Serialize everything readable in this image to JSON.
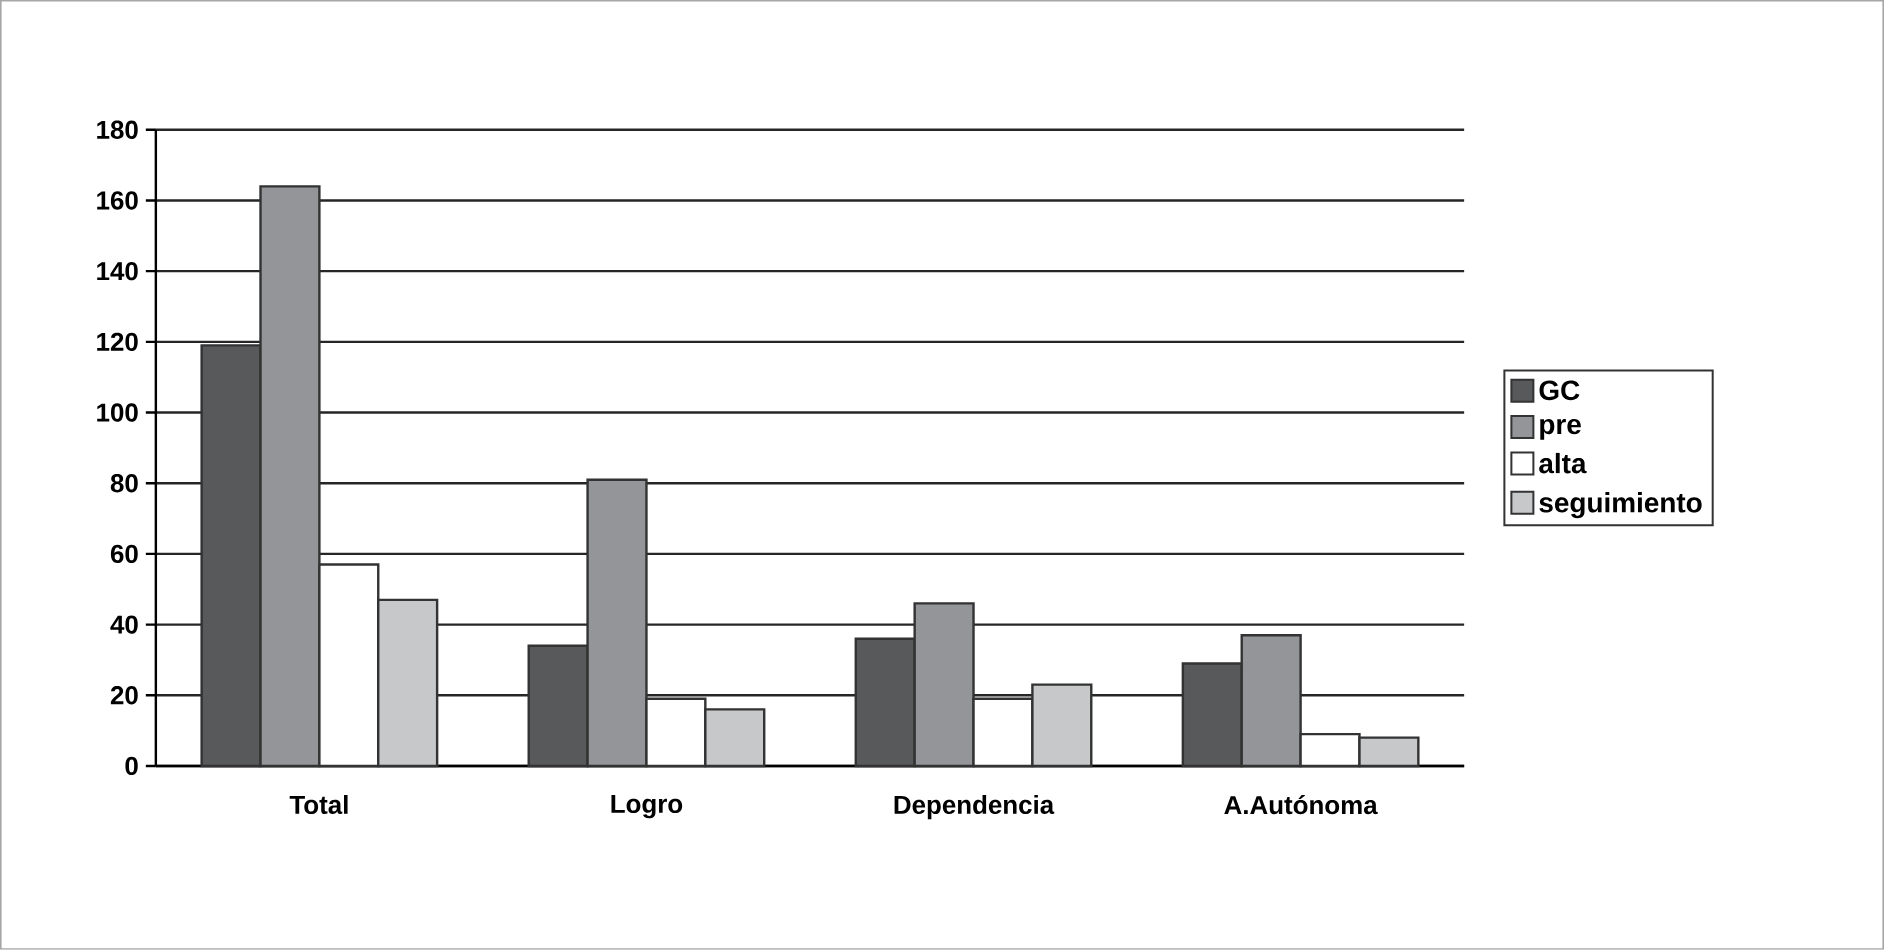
{
  "chart_data": {
    "type": "bar",
    "categories": [
      "Total",
      "Logro",
      "Dependencia",
      "A.Autónoma"
    ],
    "series": [
      {
        "name": "GC",
        "color": "#58595b",
        "values": [
          119,
          34,
          36,
          29
        ]
      },
      {
        "name": "pre",
        "color": "#939598",
        "values": [
          164,
          81,
          46,
          37
        ]
      },
      {
        "name": "alta",
        "color": "#ffffff",
        "values": [
          57,
          19,
          19,
          9
        ]
      },
      {
        "name": "seguimiento",
        "color": "#c7c8ca",
        "values": [
          47,
          16,
          23,
          8
        ]
      }
    ],
    "ylim": [
      0,
      180
    ],
    "yticks": [
      0,
      20,
      40,
      60,
      80,
      100,
      120,
      140,
      160,
      180
    ],
    "grid": "y",
    "legend": "right"
  }
}
